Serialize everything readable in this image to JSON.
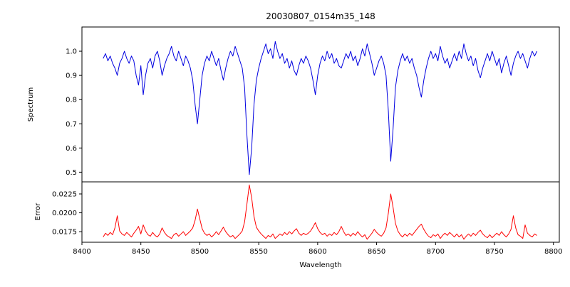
{
  "chart_data": {
    "type": "line",
    "title": "20030807_0154m35_148",
    "xlabel": "Wavelength",
    "grid": false,
    "legend": "none",
    "xlim": [
      8400,
      8805
    ],
    "x_ticks": [
      8400,
      8450,
      8500,
      8550,
      8600,
      8650,
      8700,
      8750,
      8800
    ],
    "x_tick_labels": [
      "8400",
      "8450",
      "8500",
      "8550",
      "8600",
      "8650",
      "8700",
      "8750",
      "8800"
    ],
    "x": [
      8418,
      8420,
      8422,
      8424,
      8426,
      8428,
      8430,
      8432,
      8434,
      8436,
      8438,
      8440,
      8442,
      8444,
      8446,
      8448,
      8450,
      8452,
      8454,
      8456,
      8458,
      8460,
      8462,
      8464,
      8466,
      8468,
      8470,
      8472,
      8474,
      8476,
      8478,
      8480,
      8482,
      8484,
      8486,
      8488,
      8490,
      8492,
      8494,
      8496,
      8498,
      8500,
      8502,
      8504,
      8506,
      8508,
      8510,
      8512,
      8514,
      8516,
      8518,
      8520,
      8522,
      8524,
      8526,
      8528,
      8530,
      8532,
      8534,
      8536,
      8538,
      8540,
      8542,
      8544,
      8546,
      8548,
      8550,
      8552,
      8554,
      8556,
      8558,
      8560,
      8562,
      8564,
      8566,
      8568,
      8570,
      8572,
      8574,
      8576,
      8578,
      8580,
      8582,
      8584,
      8586,
      8588,
      8590,
      8592,
      8594,
      8596,
      8598,
      8600,
      8602,
      8604,
      8606,
      8608,
      8610,
      8612,
      8614,
      8616,
      8618,
      8620,
      8622,
      8624,
      8626,
      8628,
      8630,
      8632,
      8634,
      8636,
      8638,
      8640,
      8642,
      8644,
      8646,
      8648,
      8650,
      8652,
      8654,
      8656,
      8658,
      8660,
      8662,
      8664,
      8666,
      8668,
      8670,
      8672,
      8674,
      8676,
      8678,
      8680,
      8682,
      8684,
      8686,
      8688,
      8690,
      8692,
      8694,
      8696,
      8698,
      8700,
      8702,
      8704,
      8706,
      8708,
      8710,
      8712,
      8714,
      8716,
      8718,
      8720,
      8722,
      8724,
      8726,
      8728,
      8730,
      8732,
      8734,
      8736,
      8738,
      8740,
      8742,
      8744,
      8746,
      8748,
      8750,
      8752,
      8754,
      8756,
      8758,
      8760,
      8762,
      8764,
      8766,
      8768,
      8770,
      8772,
      8774,
      8776,
      8778,
      8780,
      8782,
      8784,
      8786
    ],
    "panels": [
      {
        "name": "spectrum",
        "ylabel": "Spectrum",
        "color": "#0000e0",
        "ylim": [
          0.46,
          1.1
        ],
        "y_ticks": [
          0.5,
          0.6,
          0.7,
          0.8,
          0.9,
          1.0
        ],
        "y_tick_labels": [
          "0.5",
          "0.6",
          "0.7",
          "0.8",
          "0.9",
          "1.0"
        ],
        "values": [
          0.97,
          0.99,
          0.96,
          0.98,
          0.95,
          0.93,
          0.9,
          0.95,
          0.97,
          1.0,
          0.97,
          0.95,
          0.98,
          0.96,
          0.9,
          0.86,
          0.94,
          0.82,
          0.9,
          0.95,
          0.97,
          0.93,
          0.98,
          1.0,
          0.96,
          0.9,
          0.94,
          0.97,
          0.99,
          1.02,
          0.98,
          0.96,
          1.0,
          0.97,
          0.94,
          0.98,
          0.96,
          0.93,
          0.88,
          0.78,
          0.7,
          0.8,
          0.9,
          0.95,
          0.98,
          0.96,
          1.0,
          0.97,
          0.94,
          0.97,
          0.92,
          0.88,
          0.93,
          0.97,
          1.0,
          0.98,
          1.02,
          0.99,
          0.96,
          0.93,
          0.85,
          0.65,
          0.49,
          0.6,
          0.78,
          0.88,
          0.93,
          0.97,
          1.0,
          1.03,
          0.99,
          1.01,
          0.97,
          1.04,
          1.0,
          0.97,
          0.99,
          0.95,
          0.97,
          0.93,
          0.96,
          0.92,
          0.9,
          0.94,
          0.97,
          0.95,
          0.98,
          0.96,
          0.93,
          0.88,
          0.82,
          0.9,
          0.95,
          0.98,
          0.96,
          1.0,
          0.97,
          0.99,
          0.95,
          0.97,
          0.94,
          0.93,
          0.96,
          0.99,
          0.97,
          1.0,
          0.96,
          0.98,
          0.94,
          0.97,
          1.01,
          0.98,
          1.03,
          0.99,
          0.95,
          0.9,
          0.93,
          0.96,
          0.98,
          0.95,
          0.9,
          0.75,
          0.545,
          0.68,
          0.85,
          0.92,
          0.96,
          0.99,
          0.96,
          0.98,
          0.95,
          0.97,
          0.93,
          0.9,
          0.85,
          0.81,
          0.88,
          0.93,
          0.97,
          1.0,
          0.97,
          0.99,
          0.96,
          1.02,
          0.98,
          0.95,
          0.97,
          0.93,
          0.96,
          0.99,
          0.96,
          1.0,
          0.97,
          1.03,
          0.99,
          0.96,
          0.98,
          0.94,
          0.97,
          0.92,
          0.89,
          0.93,
          0.96,
          0.99,
          0.96,
          1.0,
          0.97,
          0.94,
          0.97,
          0.91,
          0.95,
          0.98,
          0.94,
          0.9,
          0.95,
          0.98,
          1.0,
          0.97,
          0.99,
          0.96,
          0.93,
          0.97,
          1.0,
          0.98,
          1.0
        ]
      },
      {
        "name": "error",
        "ylabel": "Error",
        "color": "#ff0000",
        "ylim": [
          0.0161,
          0.0241
        ],
        "y_ticks": [
          0.0175,
          0.02,
          0.0225
        ],
        "y_tick_labels": [
          "0.0175",
          "0.0200",
          "0.0225"
        ],
        "values": [
          0.0168,
          0.0173,
          0.017,
          0.0174,
          0.0171,
          0.018,
          0.0196,
          0.0176,
          0.0172,
          0.017,
          0.0174,
          0.0171,
          0.0168,
          0.0173,
          0.0177,
          0.0182,
          0.0172,
          0.0184,
          0.0176,
          0.0171,
          0.0169,
          0.0174,
          0.017,
          0.0168,
          0.0172,
          0.018,
          0.0174,
          0.017,
          0.0168,
          0.0166,
          0.0171,
          0.0173,
          0.0169,
          0.0172,
          0.0175,
          0.017,
          0.0173,
          0.0176,
          0.018,
          0.019,
          0.0205,
          0.0192,
          0.0179,
          0.0173,
          0.017,
          0.0172,
          0.0168,
          0.0171,
          0.0175,
          0.0171,
          0.0176,
          0.0181,
          0.0175,
          0.0171,
          0.0168,
          0.017,
          0.0166,
          0.0169,
          0.0172,
          0.0176,
          0.0188,
          0.0212,
          0.0237,
          0.022,
          0.0195,
          0.0181,
          0.0176,
          0.0172,
          0.0169,
          0.0166,
          0.017,
          0.0168,
          0.0172,
          0.0166,
          0.0169,
          0.0172,
          0.017,
          0.0174,
          0.0171,
          0.0175,
          0.0172,
          0.0176,
          0.0179,
          0.0173,
          0.017,
          0.0173,
          0.0171,
          0.0173,
          0.0176,
          0.0181,
          0.0187,
          0.0179,
          0.0174,
          0.0171,
          0.0173,
          0.0169,
          0.0172,
          0.017,
          0.0174,
          0.0171,
          0.0175,
          0.0182,
          0.0175,
          0.017,
          0.0172,
          0.0169,
          0.0173,
          0.017,
          0.0175,
          0.0171,
          0.0168,
          0.0171,
          0.0165,
          0.0169,
          0.0173,
          0.0178,
          0.0174,
          0.0171,
          0.0169,
          0.0173,
          0.018,
          0.02,
          0.0225,
          0.0207,
          0.0186,
          0.0176,
          0.0171,
          0.0168,
          0.0172,
          0.0169,
          0.0173,
          0.017,
          0.0174,
          0.0178,
          0.0182,
          0.0185,
          0.0178,
          0.0173,
          0.0169,
          0.0167,
          0.0171,
          0.0169,
          0.0172,
          0.0166,
          0.017,
          0.0173,
          0.017,
          0.0174,
          0.0171,
          0.0168,
          0.0172,
          0.0168,
          0.0171,
          0.0165,
          0.0169,
          0.0172,
          0.0169,
          0.0173,
          0.017,
          0.0174,
          0.0177,
          0.0172,
          0.0169,
          0.0167,
          0.0171,
          0.0167,
          0.017,
          0.0173,
          0.017,
          0.0175,
          0.0171,
          0.0168,
          0.0172,
          0.0178,
          0.0196,
          0.018,
          0.0171,
          0.0169,
          0.0166,
          0.0184,
          0.0173,
          0.017,
          0.0168,
          0.0172,
          0.017
        ]
      }
    ]
  }
}
